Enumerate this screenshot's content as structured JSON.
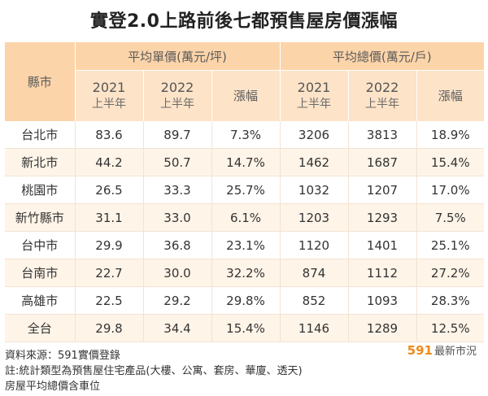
{
  "title": "實登2.0上路前後七都預售屋房價漲幅",
  "header": {
    "city": "縣市",
    "unit_group": "平均單價(萬元/坪)",
    "total_group": "平均總價(萬元/戶)",
    "year_2021": "2021",
    "year_2022": "2022",
    "half": "上半年",
    "change": "漲幅"
  },
  "rows": [
    {
      "city": "台北市",
      "u2021": "83.6",
      "u2022": "89.7",
      "uchg": "7.3%",
      "t2021": "3206",
      "t2022": "3813",
      "tchg": "18.9%"
    },
    {
      "city": "新北市",
      "u2021": "44.2",
      "u2022": "50.7",
      "uchg": "14.7%",
      "t2021": "1462",
      "t2022": "1687",
      "tchg": "15.4%"
    },
    {
      "city": "桃園市",
      "u2021": "26.5",
      "u2022": "33.3",
      "uchg": "25.7%",
      "t2021": "1032",
      "t2022": "1207",
      "tchg": "17.0%"
    },
    {
      "city": "新竹縣市",
      "u2021": "31.1",
      "u2022": "33.0",
      "uchg": "6.1%",
      "t2021": "1203",
      "t2022": "1293",
      "tchg": "7.5%"
    },
    {
      "city": "台中市",
      "u2021": "29.9",
      "u2022": "36.8",
      "uchg": "23.1%",
      "t2021": "1120",
      "t2022": "1401",
      "tchg": "25.1%"
    },
    {
      "city": "台南市",
      "u2021": "22.7",
      "u2022": "30.0",
      "uchg": "32.2%",
      "t2021": "874",
      "t2022": "1112",
      "tchg": "27.2%"
    },
    {
      "city": "高雄市",
      "u2021": "22.5",
      "u2022": "29.2",
      "uchg": "29.8%",
      "t2021": "852",
      "t2022": "1093",
      "tchg": "28.3%"
    },
    {
      "city": "全台",
      "u2021": "29.8",
      "u2022": "34.4",
      "uchg": "15.4%",
      "t2021": "1146",
      "t2022": "1289",
      "tchg": "12.5%"
    }
  ],
  "footer": {
    "source": "資料來源：591實價登錄",
    "note": "註:統計類型為預售屋住宅產品(大樓、公寓、套房、華廈、透天)",
    "note2": "房屋平均總價含車位"
  },
  "brand": {
    "num": "591",
    "text": "最新市況"
  },
  "colors": {
    "header": "#fcd4a9",
    "subheader": "#fde3c8",
    "row_alt": "#fff4e8",
    "brand": "#f08a1c"
  }
}
